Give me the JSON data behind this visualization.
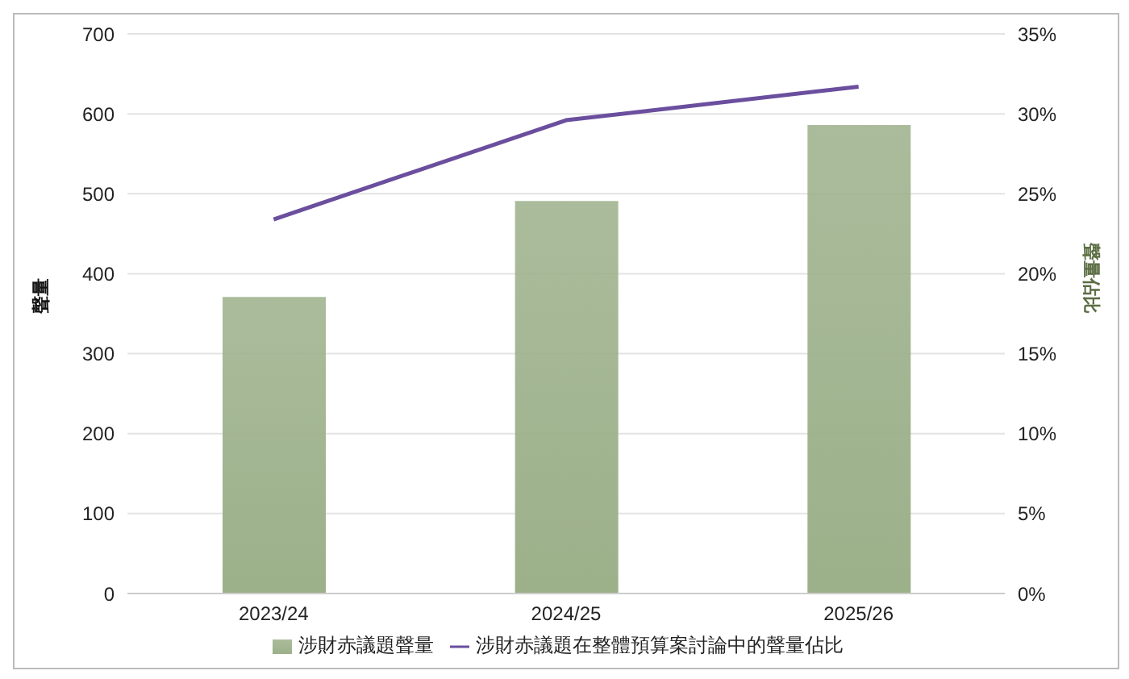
{
  "chart_data": {
    "type": "bar",
    "categories": [
      "2023/24",
      "2024/25",
      "2025/26"
    ],
    "series": [
      {
        "name": "涉財赤議題聲量",
        "color": "#9cb08a",
        "values": [
          371,
          491,
          586
        ]
      },
      {
        "name": "涉財赤議題在整體預算案討論中的聲量佔比",
        "type": "line",
        "axis": "y2",
        "color": "#6b4f9e",
        "values": [
          23.4,
          29.6,
          31.7
        ]
      }
    ],
    "ylabel": "聲量",
    "y2label": "聲量佔比",
    "ylim": [
      0,
      700
    ],
    "yticks": [
      0,
      100,
      200,
      300,
      400,
      500,
      600,
      700
    ],
    "y2lim": [
      0,
      35
    ],
    "y2ticks": [
      {
        "value": 0,
        "label": "0%"
      },
      {
        "value": 5,
        "label": "5%"
      },
      {
        "value": 10,
        "label": "10%"
      },
      {
        "value": 15,
        "label": "15%"
      },
      {
        "value": 20,
        "label": "20%"
      },
      {
        "value": 25,
        "label": "25%"
      },
      {
        "value": 30,
        "label": "30%"
      },
      {
        "value": 35,
        "label": "35%"
      }
    ],
    "grid": "y",
    "legend": "bottom",
    "marker": "none"
  }
}
